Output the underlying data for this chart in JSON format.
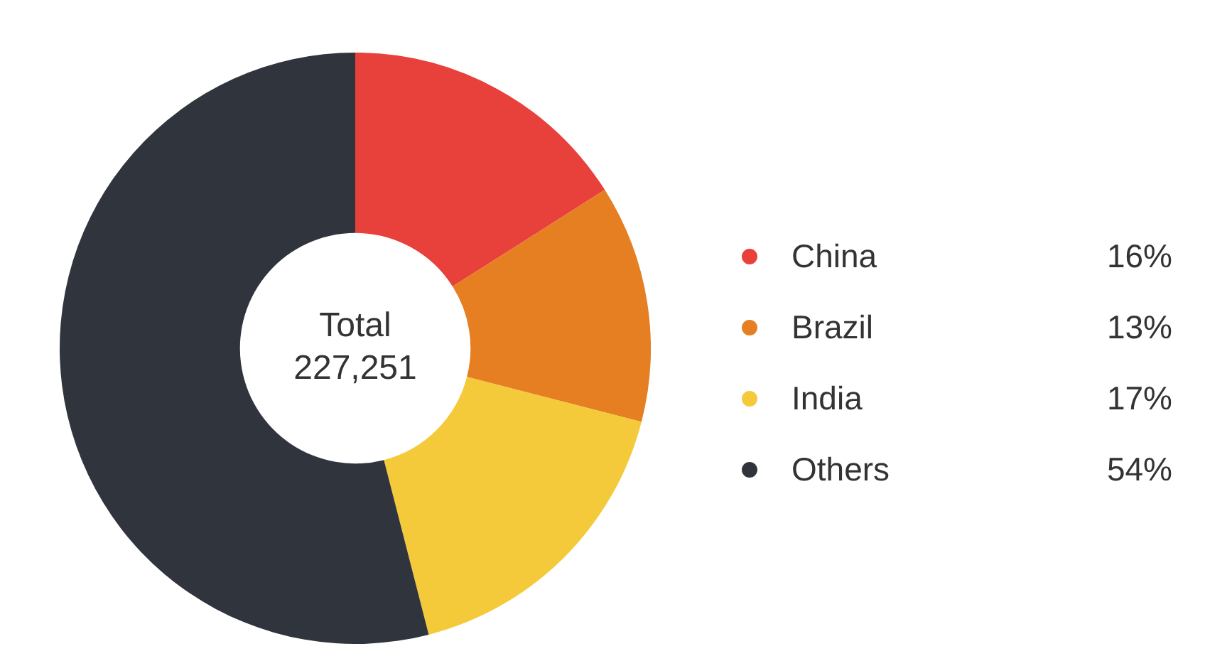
{
  "chart_data": {
    "type": "donut",
    "categories": [
      "China",
      "Brazil",
      "India",
      "Others"
    ],
    "values": [
      16,
      13,
      17,
      54
    ],
    "colors": [
      "#e8403a",
      "#e67e22",
      "#f4c93a",
      "#30353d"
    ],
    "annotations": [
      "Total",
      "227,251"
    ],
    "value_labels": [
      "16%",
      "13%",
      "17%",
      "54%"
    ],
    "legend": "right"
  }
}
